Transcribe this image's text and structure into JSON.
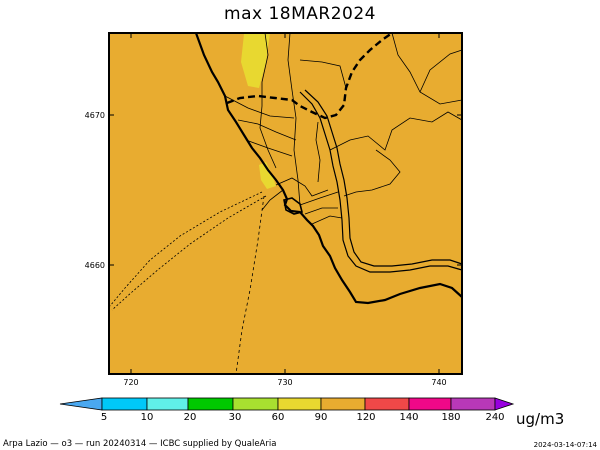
{
  "title": "max 18MAR2024",
  "map": {
    "x_axis_ticks": [
      "720",
      "730",
      "740"
    ],
    "y_axis_ticks": [
      "4670",
      "4660"
    ],
    "background_color": "#e8ac30",
    "highlight_color": "#e8d830",
    "boundary_color": "#000000"
  },
  "colorbar": {
    "labels": [
      "5",
      "10",
      "20",
      "30",
      "60",
      "90",
      "120",
      "140",
      "180",
      "240"
    ],
    "colors": [
      "#4aa8f0",
      "#00c8f8",
      "#60f0e8",
      "#00c800",
      "#a8e030",
      "#e8d830",
      "#e8ac30",
      "#f04848",
      "#f00888",
      "#b838b8",
      "#9800e0",
      "#7800f0"
    ],
    "unit": "ug/m3"
  },
  "footer": {
    "left": "Arpa Lazio — o3 — run 20240314 — ICBC supplied by QualeAria",
    "right": "2024-03-14-07:14"
  }
}
